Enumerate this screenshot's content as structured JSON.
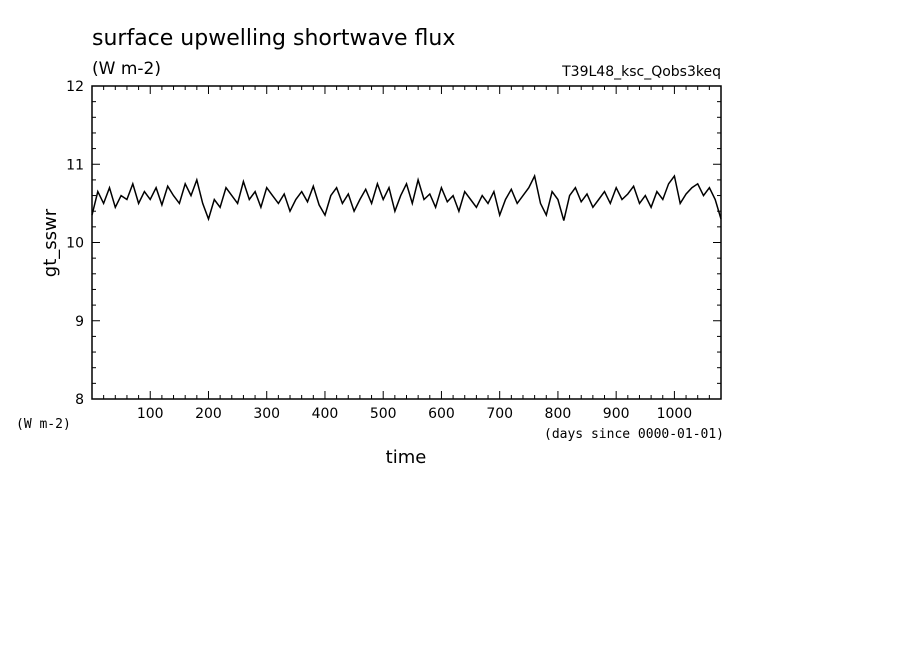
{
  "chart_data": {
    "type": "line",
    "title": "surface upwelling shortwave flux",
    "units_label": "(W m-2)",
    "run_label": "T39L48_ksc_Qobs3keq",
    "ylabel": "gt_sswr",
    "y_unit_label": "(W m-2)",
    "xlabel": "time",
    "x_unit_label": "(days since 0000-01-01)",
    "xlim": [
      0,
      1080
    ],
    "ylim": [
      8,
      12
    ],
    "x_ticks": [
      100,
      200,
      300,
      400,
      500,
      600,
      700,
      800,
      900,
      1000
    ],
    "x_tick_labels": [
      "100",
      "200",
      "300",
      "400",
      "500",
      "600",
      "700",
      "800",
      "900",
      "1000"
    ],
    "y_ticks": [
      8,
      9,
      10,
      11,
      12
    ],
    "y_tick_labels": [
      "8",
      "9",
      "10",
      "11",
      "12"
    ],
    "line_color": "#000000",
    "grid": false,
    "series": [
      {
        "x": [
          0,
          10,
          20,
          30,
          40,
          50,
          60,
          70,
          80,
          90,
          100,
          110,
          120,
          130,
          140,
          150,
          160,
          170,
          180,
          190,
          200,
          210,
          220,
          230,
          240,
          250,
          260,
          270,
          280,
          290,
          300,
          310,
          320,
          330,
          340,
          350,
          360,
          370,
          380,
          390,
          400,
          410,
          420,
          430,
          440,
          450,
          460,
          470,
          480,
          490,
          500,
          510,
          520,
          530,
          540,
          550,
          560,
          570,
          580,
          590,
          600,
          610,
          620,
          630,
          640,
          650,
          660,
          670,
          680,
          690,
          700,
          710,
          720,
          730,
          740,
          750,
          760,
          770,
          780,
          790,
          800,
          810,
          820,
          830,
          840,
          850,
          860,
          870,
          880,
          890,
          900,
          910,
          920,
          930,
          940,
          950,
          960,
          970,
          980,
          990,
          1000,
          1010,
          1020,
          1030,
          1040,
          1050,
          1060,
          1070,
          1080
        ],
        "values": [
          10.35,
          10.65,
          10.5,
          10.7,
          10.45,
          10.6,
          10.55,
          10.75,
          10.5,
          10.65,
          10.55,
          10.7,
          10.48,
          10.72,
          10.6,
          10.5,
          10.75,
          10.6,
          10.8,
          10.5,
          10.3,
          10.55,
          10.45,
          10.7,
          10.6,
          10.5,
          10.78,
          10.55,
          10.65,
          10.45,
          10.7,
          10.6,
          10.5,
          10.62,
          10.4,
          10.55,
          10.65,
          10.52,
          10.72,
          10.48,
          10.35,
          10.6,
          10.7,
          10.5,
          10.62,
          10.4,
          10.55,
          10.68,
          10.5,
          10.75,
          10.55,
          10.7,
          10.4,
          10.6,
          10.75,
          10.5,
          10.8,
          10.55,
          10.62,
          10.45,
          10.7,
          10.52,
          10.6,
          10.4,
          10.65,
          10.55,
          10.45,
          10.6,
          10.5,
          10.65,
          10.35,
          10.55,
          10.68,
          10.5,
          10.6,
          10.7,
          10.85,
          10.5,
          10.35,
          10.65,
          10.55,
          10.28,
          10.6,
          10.7,
          10.52,
          10.62,
          10.45,
          10.55,
          10.65,
          10.5,
          10.7,
          10.55,
          10.62,
          10.72,
          10.5,
          10.6,
          10.45,
          10.65,
          10.55,
          10.75,
          10.85,
          10.5,
          10.62,
          10.7,
          10.75,
          10.6,
          10.7,
          10.55,
          10.3
        ]
      }
    ]
  }
}
